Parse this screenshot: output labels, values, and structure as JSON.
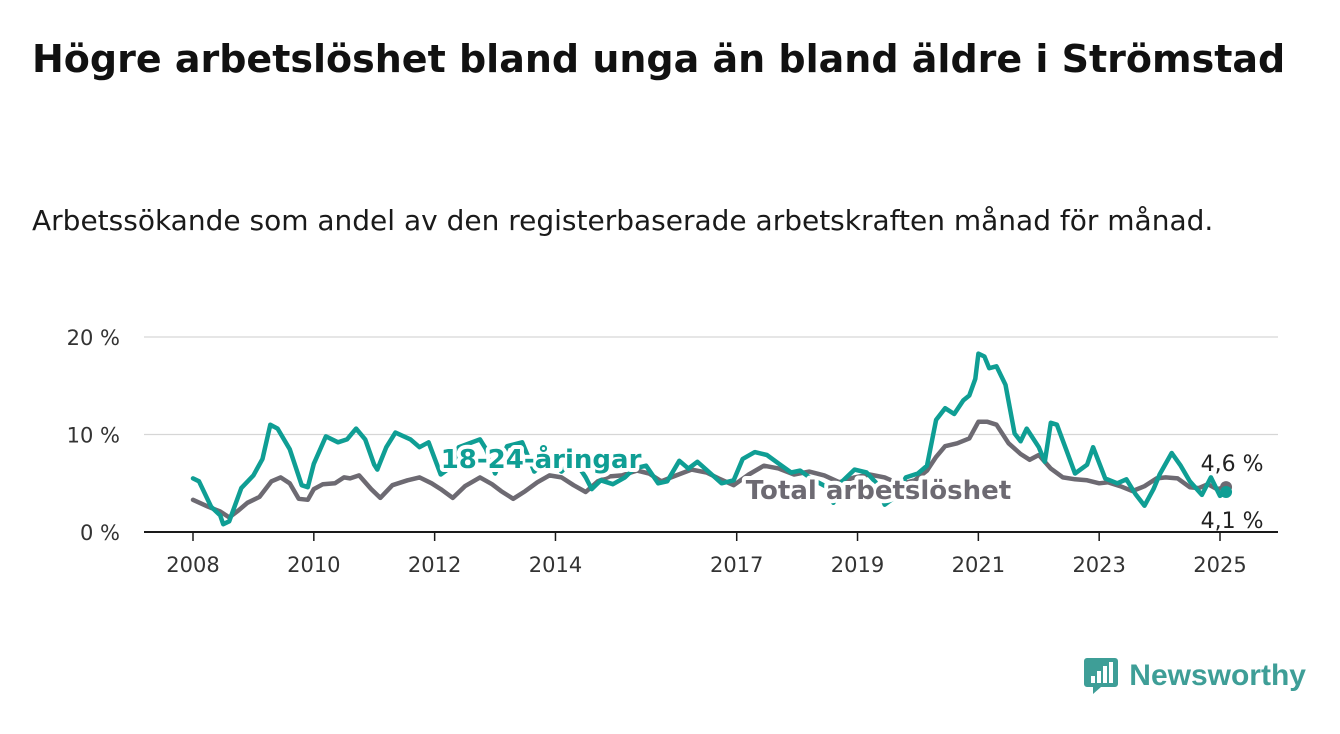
{
  "title": "Högre arbetslöshet bland unga än bland äldre i Strömstad",
  "subtitle": "Arbetssökande som andel av den registerbaserade arbetskraften månad för månad.",
  "brand": {
    "name": "Newsworthy",
    "color": "#3e9e97",
    "icon": "bar-chart-logo-icon"
  },
  "chart_data": {
    "type": "line",
    "y_unit": "%",
    "ylim": [
      0,
      20
    ],
    "y_ticks": [
      {
        "value": 0,
        "label": "0 %"
      },
      {
        "value": 10,
        "label": "10 %"
      },
      {
        "value": 20,
        "label": "20 %"
      }
    ],
    "x_range": [
      2008,
      2025.15
    ],
    "x_ticks": [
      {
        "value": 2008,
        "label": "2008"
      },
      {
        "value": 2010,
        "label": "2010"
      },
      {
        "value": 2012,
        "label": "2012"
      },
      {
        "value": 2014,
        "label": "2014"
      },
      {
        "value": 2017,
        "label": "2017"
      },
      {
        "value": 2019,
        "label": "2019"
      },
      {
        "value": 2021,
        "label": "2021"
      },
      {
        "value": 2023,
        "label": "2023"
      },
      {
        "value": 2025,
        "label": "2025"
      }
    ],
    "grid": "horizontal",
    "series": [
      {
        "name": "Total arbetslöshet",
        "color": "#6d6a72",
        "end_label": "4,6 %",
        "points": [
          [
            2008.0,
            3.3
          ],
          [
            2008.25,
            2.6
          ],
          [
            2008.45,
            2.1
          ],
          [
            2008.6,
            1.5
          ],
          [
            2008.75,
            2.2
          ],
          [
            2008.9,
            3.0
          ],
          [
            2009.1,
            3.6
          ],
          [
            2009.3,
            5.2
          ],
          [
            2009.45,
            5.6
          ],
          [
            2009.6,
            5.0
          ],
          [
            2009.75,
            3.4
          ],
          [
            2009.9,
            3.3
          ],
          [
            2010.0,
            4.4
          ],
          [
            2010.15,
            4.9
          ],
          [
            2010.35,
            5.0
          ],
          [
            2010.5,
            5.6
          ],
          [
            2010.6,
            5.5
          ],
          [
            2010.75,
            5.8
          ],
          [
            2010.95,
            4.4
          ],
          [
            2011.1,
            3.5
          ],
          [
            2011.3,
            4.8
          ],
          [
            2011.55,
            5.3
          ],
          [
            2011.75,
            5.6
          ],
          [
            2011.95,
            5.0
          ],
          [
            2012.1,
            4.4
          ],
          [
            2012.3,
            3.5
          ],
          [
            2012.5,
            4.7
          ],
          [
            2012.75,
            5.6
          ],
          [
            2012.95,
            4.9
          ],
          [
            2013.1,
            4.2
          ],
          [
            2013.3,
            3.4
          ],
          [
            2013.5,
            4.2
          ],
          [
            2013.7,
            5.1
          ],
          [
            2013.9,
            5.8
          ],
          [
            2014.1,
            5.6
          ],
          [
            2014.3,
            4.8
          ],
          [
            2014.5,
            4.1
          ],
          [
            2014.7,
            5.2
          ],
          [
            2014.9,
            5.7
          ],
          [
            2015.1,
            5.8
          ],
          [
            2015.35,
            6.3
          ],
          [
            2015.55,
            6.0
          ],
          [
            2015.75,
            5.2
          ],
          [
            2016.0,
            5.8
          ],
          [
            2016.25,
            6.4
          ],
          [
            2016.5,
            6.1
          ],
          [
            2016.7,
            5.5
          ],
          [
            2016.95,
            4.8
          ],
          [
            2017.2,
            5.9
          ],
          [
            2017.45,
            6.8
          ],
          [
            2017.7,
            6.5
          ],
          [
            2017.95,
            5.9
          ],
          [
            2018.2,
            6.2
          ],
          [
            2018.45,
            5.8
          ],
          [
            2018.7,
            5.1
          ],
          [
            2018.95,
            5.6
          ],
          [
            2019.2,
            5.9
          ],
          [
            2019.45,
            5.6
          ],
          [
            2019.7,
            4.9
          ],
          [
            2019.95,
            5.3
          ],
          [
            2020.15,
            6.3
          ],
          [
            2020.3,
            7.7
          ],
          [
            2020.45,
            8.8
          ],
          [
            2020.65,
            9.1
          ],
          [
            2020.85,
            9.6
          ],
          [
            2021.0,
            11.3
          ],
          [
            2021.15,
            11.3
          ],
          [
            2021.3,
            11.0
          ],
          [
            2021.5,
            9.1
          ],
          [
            2021.7,
            8.0
          ],
          [
            2021.85,
            7.4
          ],
          [
            2022.0,
            7.9
          ],
          [
            2022.2,
            6.5
          ],
          [
            2022.4,
            5.6
          ],
          [
            2022.6,
            5.4
          ],
          [
            2022.8,
            5.3
          ],
          [
            2023.0,
            5.0
          ],
          [
            2023.15,
            5.1
          ],
          [
            2023.35,
            4.7
          ],
          [
            2023.55,
            4.2
          ],
          [
            2023.75,
            4.7
          ],
          [
            2023.95,
            5.5
          ],
          [
            2024.1,
            5.6
          ],
          [
            2024.3,
            5.5
          ],
          [
            2024.5,
            4.6
          ],
          [
            2024.65,
            4.5
          ],
          [
            2024.8,
            4.9
          ],
          [
            2024.95,
            4.4
          ],
          [
            2025.1,
            4.6
          ]
        ]
      },
      {
        "name": "18-24-åringar",
        "color": "#0f9e94",
        "end_label": "4,1 %",
        "points": [
          [
            2008.0,
            5.5
          ],
          [
            2008.1,
            5.2
          ],
          [
            2008.3,
            2.6
          ],
          [
            2008.45,
            1.7
          ],
          [
            2008.5,
            0.8
          ],
          [
            2008.6,
            1.1
          ],
          [
            2008.8,
            4.5
          ],
          [
            2009.0,
            5.8
          ],
          [
            2009.15,
            7.5
          ],
          [
            2009.28,
            11.0
          ],
          [
            2009.4,
            10.6
          ],
          [
            2009.6,
            8.5
          ],
          [
            2009.8,
            4.8
          ],
          [
            2009.9,
            4.6
          ],
          [
            2010.0,
            7.0
          ],
          [
            2010.2,
            9.8
          ],
          [
            2010.4,
            9.2
          ],
          [
            2010.55,
            9.5
          ],
          [
            2010.7,
            10.6
          ],
          [
            2010.85,
            9.5
          ],
          [
            2011.0,
            6.9
          ],
          [
            2011.05,
            6.4
          ],
          [
            2011.2,
            8.7
          ],
          [
            2011.35,
            10.2
          ],
          [
            2011.6,
            9.5
          ],
          [
            2011.75,
            8.7
          ],
          [
            2011.9,
            9.2
          ],
          [
            2012.1,
            5.9
          ],
          [
            2012.3,
            6.8
          ],
          [
            2012.4,
            8.7
          ],
          [
            2012.75,
            9.5
          ],
          [
            2012.85,
            8.5
          ],
          [
            2013.0,
            6.0
          ],
          [
            2013.2,
            8.8
          ],
          [
            2013.45,
            9.2
          ],
          [
            2013.65,
            6.2
          ],
          [
            2013.9,
            7.6
          ],
          [
            2014.1,
            6.2
          ],
          [
            2014.3,
            7.5
          ],
          [
            2014.5,
            5.6
          ],
          [
            2014.6,
            4.4
          ],
          [
            2014.75,
            5.3
          ],
          [
            2014.95,
            4.9
          ],
          [
            2015.15,
            5.6
          ],
          [
            2015.3,
            6.5
          ],
          [
            2015.5,
            6.8
          ],
          [
            2015.7,
            5.0
          ],
          [
            2015.85,
            5.2
          ],
          [
            2016.05,
            7.3
          ],
          [
            2016.2,
            6.5
          ],
          [
            2016.35,
            7.2
          ],
          [
            2016.55,
            6.1
          ],
          [
            2016.75,
            5.0
          ],
          [
            2016.95,
            5.3
          ],
          [
            2017.1,
            7.5
          ],
          [
            2017.3,
            8.2
          ],
          [
            2017.5,
            7.9
          ],
          [
            2017.7,
            7.0
          ],
          [
            2017.9,
            6.1
          ],
          [
            2018.05,
            6.3
          ],
          [
            2018.25,
            5.4
          ],
          [
            2018.5,
            4.6
          ],
          [
            2018.6,
            3.0
          ],
          [
            2018.75,
            5.2
          ],
          [
            2018.95,
            6.4
          ],
          [
            2019.15,
            6.1
          ],
          [
            2019.3,
            5.1
          ],
          [
            2019.45,
            2.8
          ],
          [
            2019.6,
            3.5
          ],
          [
            2019.8,
            5.6
          ],
          [
            2020.0,
            6.0
          ],
          [
            2020.15,
            6.8
          ],
          [
            2020.3,
            11.5
          ],
          [
            2020.45,
            12.7
          ],
          [
            2020.6,
            12.1
          ],
          [
            2020.75,
            13.5
          ],
          [
            2020.85,
            14.0
          ],
          [
            2020.95,
            15.7
          ],
          [
            2021.0,
            18.3
          ],
          [
            2021.1,
            18.0
          ],
          [
            2021.18,
            16.8
          ],
          [
            2021.3,
            17.0
          ],
          [
            2021.45,
            15.1
          ],
          [
            2021.6,
            10.1
          ],
          [
            2021.7,
            9.3
          ],
          [
            2021.8,
            10.6
          ],
          [
            2022.0,
            8.7
          ],
          [
            2022.1,
            7.2
          ],
          [
            2022.2,
            11.2
          ],
          [
            2022.3,
            11.0
          ],
          [
            2022.45,
            8.5
          ],
          [
            2022.6,
            6.0
          ],
          [
            2022.8,
            6.9
          ],
          [
            2022.9,
            8.7
          ],
          [
            2023.1,
            5.5
          ],
          [
            2023.3,
            5.0
          ],
          [
            2023.45,
            5.4
          ],
          [
            2023.6,
            3.9
          ],
          [
            2023.75,
            2.7
          ],
          [
            2023.9,
            4.4
          ],
          [
            2024.0,
            5.9
          ],
          [
            2024.2,
            8.1
          ],
          [
            2024.35,
            6.8
          ],
          [
            2024.5,
            5.2
          ],
          [
            2024.7,
            3.8
          ],
          [
            2024.85,
            5.6
          ],
          [
            2025.0,
            3.7
          ],
          [
            2025.1,
            4.1
          ]
        ]
      }
    ],
    "series_labels": [
      {
        "series": "18-24-åringar",
        "text": "18-24-åringar",
        "x": 2012.1,
        "y": 7.5
      },
      {
        "series": "Total arbetslöshet",
        "text": "Total arbetslöshet",
        "x": 2017.15,
        "y": 4.3
      }
    ]
  }
}
